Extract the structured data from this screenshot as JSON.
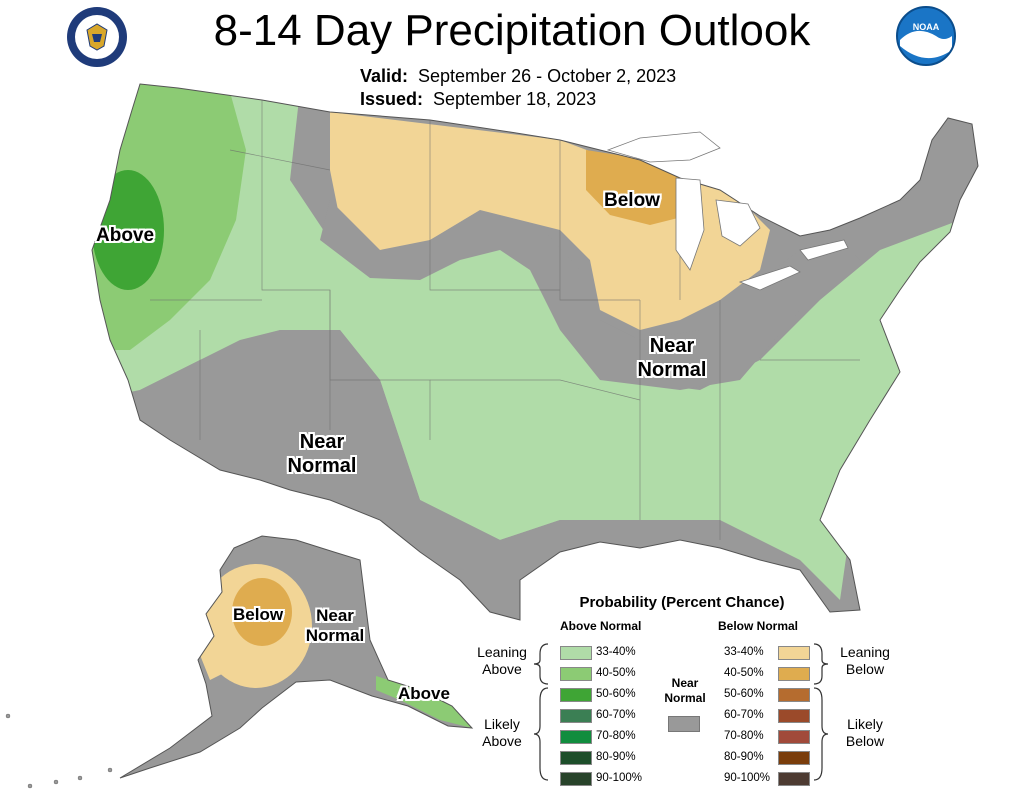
{
  "title": "8-14 Day Precipitation Outlook",
  "valid": {
    "label": "Valid:",
    "value": "September 26 - October 2, 2023"
  },
  "issued": {
    "label": "Issued:",
    "value": "September 18, 2023"
  },
  "logos": {
    "left": "doc-seal-icon",
    "right": "noaa-logo-icon"
  },
  "regions": {
    "above_west": "Above",
    "below_midwest": "Below",
    "near_east_1": "Near",
    "near_east_2": "Normal",
    "near_sw_1": "Near",
    "near_sw_2": "Normal",
    "ak_below": "Below",
    "ak_near_1": "Near",
    "ak_near_2": "Normal",
    "ak_above": "Above"
  },
  "legend": {
    "title": "Probability (Percent Chance)",
    "above_head": "Above Normal",
    "below_head": "Below Normal",
    "near_head_1": "Near",
    "near_head_2": "Normal",
    "leaning_above_1": "Leaning",
    "leaning_above_2": "Above",
    "likely_above_1": "Likely",
    "likely_above_2": "Above",
    "leaning_below_1": "Leaning",
    "leaning_below_2": "Below",
    "likely_below_1": "Likely",
    "likely_below_2": "Below",
    "above": [
      {
        "label": "33-40%",
        "color": "#b0dca8"
      },
      {
        "label": "40-50%",
        "color": "#8ccb74"
      },
      {
        "label": "50-60%",
        "color": "#3fa535"
      },
      {
        "label": "60-70%",
        "color": "#3b7f54"
      },
      {
        "label": "70-80%",
        "color": "#118d3e"
      },
      {
        "label": "80-90%",
        "color": "#1d4e2a"
      },
      {
        "label": "90-100%",
        "color": "#28432a"
      }
    ],
    "below": [
      {
        "label": "33-40%",
        "color": "#f2d596"
      },
      {
        "label": "40-50%",
        "color": "#dfac4f"
      },
      {
        "label": "50-60%",
        "color": "#b56c2f"
      },
      {
        "label": "60-70%",
        "color": "#9b4a2a"
      },
      {
        "label": "70-80%",
        "color": "#a14a3a"
      },
      {
        "label": "80-90%",
        "color": "#7a3d0b"
      },
      {
        "label": "90-100%",
        "color": "#4d3b32"
      }
    ],
    "near_color": "#999999"
  }
}
